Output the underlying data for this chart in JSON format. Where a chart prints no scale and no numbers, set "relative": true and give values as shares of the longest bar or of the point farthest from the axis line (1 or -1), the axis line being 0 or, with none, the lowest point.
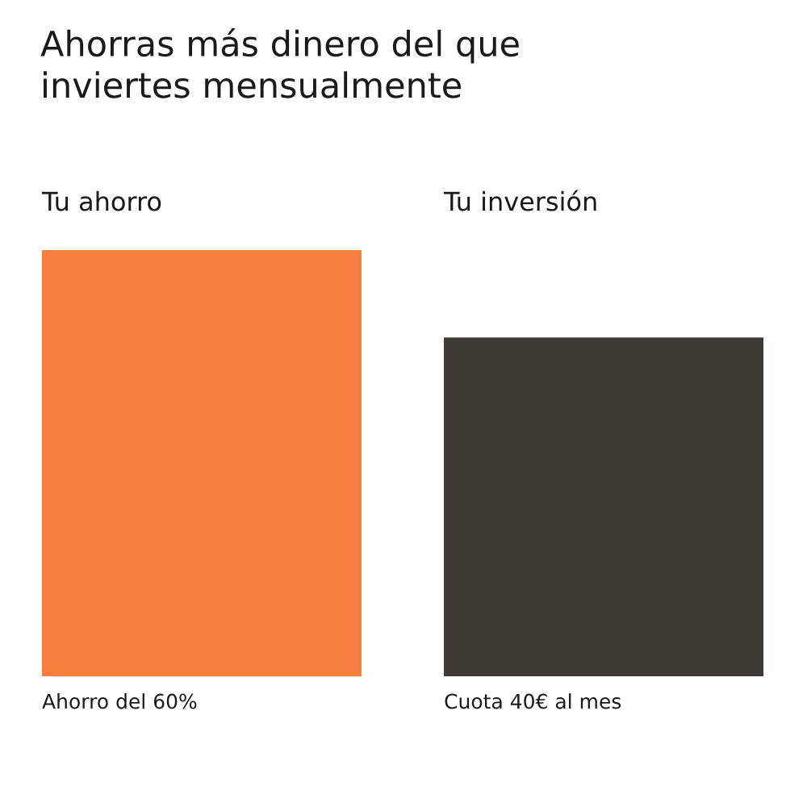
{
  "chart_data": {
    "type": "bar",
    "title": "Ahorras más dinero del que\ninviertes mensualmente",
    "categories": [
      "Tu ahorro",
      "Tu inversión"
    ],
    "values": [
      1,
      0.795
    ],
    "colors": [
      "#f77f3d",
      "#3d3a34"
    ],
    "relative": true,
    "annotations": [
      "Ahorro del 60%",
      "Cuota 40€ al mes"
    ]
  }
}
